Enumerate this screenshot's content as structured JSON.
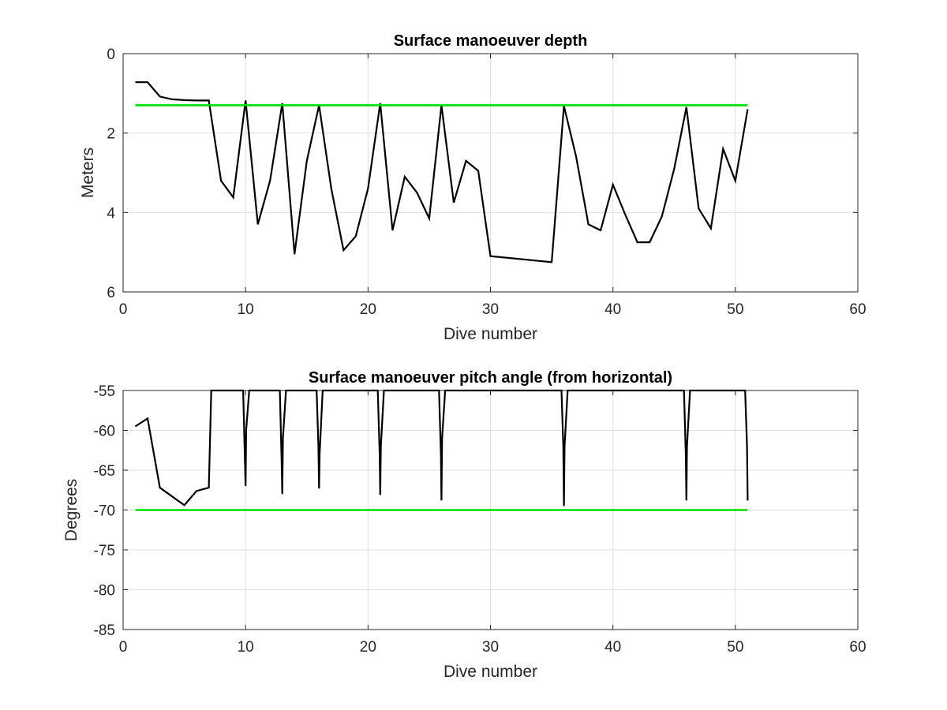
{
  "chart_data": [
    {
      "type": "line",
      "title": "Surface manoeuver depth",
      "xlabel": "Dive number",
      "ylabel": "Meters",
      "xlim": [
        0,
        60
      ],
      "ylim": [
        0,
        6
      ],
      "y_reversed": true,
      "grid": true,
      "x_ticks": [
        "0",
        "10",
        "20",
        "30",
        "40",
        "50",
        "60"
      ],
      "y_ticks": [
        "0",
        "2",
        "4",
        "6"
      ],
      "colors": {
        "data": "#000000",
        "threshold": "#00dd00"
      },
      "series": [
        {
          "color": "#000000",
          "x": [
            1,
            2,
            3,
            4,
            5,
            6,
            7,
            8,
            9,
            10,
            11,
            12,
            13,
            14,
            15,
            16,
            17,
            18,
            19,
            20,
            21,
            22,
            23,
            24,
            25,
            26,
            27,
            28,
            29,
            30,
            35,
            36,
            37,
            38,
            39,
            40,
            41,
            42,
            43,
            44,
            45,
            46,
            47,
            48,
            49,
            50,
            51
          ],
          "y": [
            0.72,
            0.72,
            1.08,
            1.15,
            1.17,
            1.18,
            1.18,
            3.2,
            3.62,
            1.18,
            4.3,
            3.2,
            1.25,
            5.05,
            2.7,
            1.3,
            3.4,
            4.95,
            4.6,
            3.4,
            1.25,
            4.45,
            3.1,
            3.5,
            4.15,
            1.3,
            3.75,
            2.7,
            2.95,
            5.1,
            5.25,
            1.32,
            2.6,
            4.3,
            4.45,
            3.3,
            4.05,
            4.75,
            4.75,
            4.1,
            2.9,
            1.35,
            3.9,
            4.4,
            2.4,
            3.2,
            1.4
          ]
        },
        {
          "color": "#00dd00",
          "x": [
            1,
            51
          ],
          "y": [
            1.3,
            1.3
          ]
        }
      ]
    },
    {
      "type": "line",
      "title": "Surface manoeuver pitch angle (from horizontal)",
      "xlabel": "Dive number",
      "ylabel": "Degrees",
      "xlim": [
        0,
        60
      ],
      "ylim": [
        -85,
        -55
      ],
      "grid": true,
      "x_ticks": [
        "0",
        "10",
        "20",
        "30",
        "40",
        "50",
        "60"
      ],
      "y_ticks": [
        "-55",
        "-60",
        "-65",
        "-70",
        "-75",
        "-80",
        "-85"
      ],
      "colors": {
        "data": "#000000",
        "threshold": "#00dd00"
      },
      "series": [
        {
          "color": "#000000",
          "x": [
            1,
            2,
            3,
            4,
            5,
            6,
            7,
            7.2,
            9.8,
            9.95,
            10,
            10.05,
            10.3,
            12.8,
            12.95,
            13,
            13.05,
            13.3,
            15.8,
            15.95,
            16,
            16.05,
            16.3,
            20.8,
            20.95,
            21,
            21.05,
            21.3,
            25.8,
            25.95,
            26,
            26.05,
            26.3,
            35.8,
            35.95,
            36,
            36.05,
            36.3,
            45.8,
            45.95,
            46,
            46.05,
            46.3,
            50.8,
            50.95,
            51
          ],
          "y": [
            -59.5,
            -58.5,
            -67.2,
            -68.3,
            -69.4,
            -67.6,
            -67.2,
            -55,
            -55,
            -64,
            -67,
            -60,
            -55,
            -55,
            -64,
            -68,
            -61,
            -55,
            -55,
            -62,
            -67.3,
            -63,
            -55,
            -55,
            -63,
            -68.1,
            -62,
            -55,
            -55,
            -63,
            -68.8,
            -61,
            -55,
            -55,
            -62,
            -69.5,
            -62,
            -55,
            -55,
            -63,
            -68.8,
            -62,
            -55,
            -55,
            -62,
            -68.8
          ]
        },
        {
          "color": "#00dd00",
          "x": [
            1,
            51
          ],
          "y": [
            -70,
            -70
          ]
        }
      ]
    }
  ]
}
